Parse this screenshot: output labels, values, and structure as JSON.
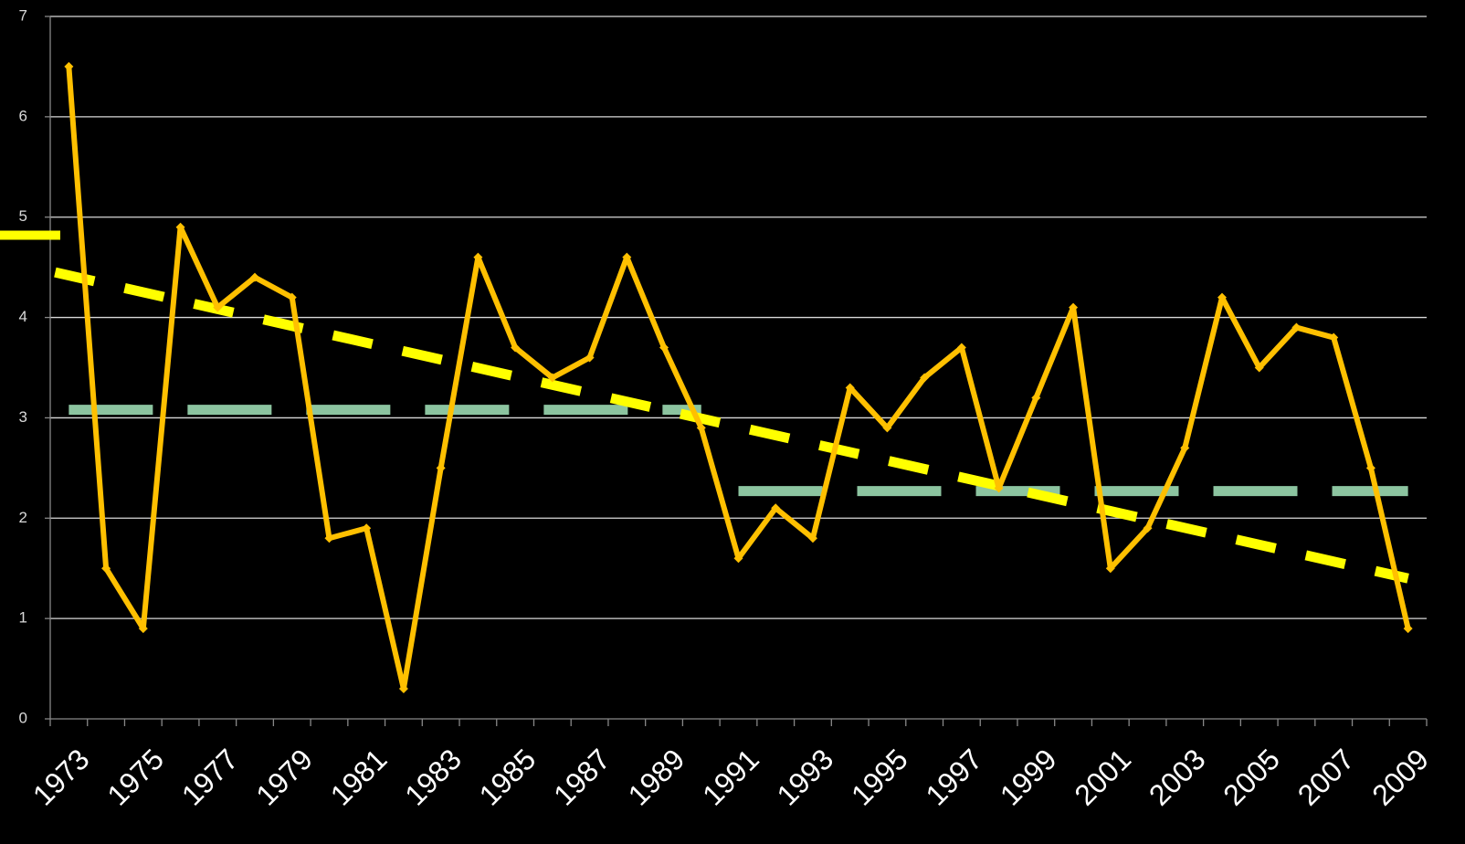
{
  "chart_data": {
    "type": "line",
    "categories": [
      "1973",
      null,
      "1975",
      null,
      "1977",
      null,
      "1979",
      null,
      "1981",
      null,
      "1983",
      null,
      "1985",
      null,
      "1987",
      null,
      "1989",
      null,
      "1991",
      null,
      "1993",
      null,
      "1995",
      null,
      "1997",
      null,
      "1999",
      null,
      "2001",
      null,
      "2003",
      null,
      "2005",
      null,
      "2007",
      null,
      "2009"
    ],
    "series": [
      {
        "color": "#ffc000",
        "values": [
          6.5,
          1.5,
          0.9,
          4.9,
          4.1,
          4.4,
          4.2,
          1.8,
          1.9,
          0.3,
          2.5,
          4.6,
          3.7,
          3.4,
          3.6,
          4.6,
          3.7,
          2.9,
          1.6,
          2.1,
          1.8,
          3.3,
          2.9,
          3.4,
          3.7,
          2.3,
          3.2,
          4.1,
          1.5,
          1.9,
          2.7,
          4.2,
          3.5,
          3.9,
          3.8,
          2.5,
          0.9
        ]
      },
      {
        "color": "#8cc4a0",
        "values": [
          3.08,
          3.08,
          3.08,
          3.08,
          3.08,
          3.08,
          3.08,
          3.08,
          3.08,
          3.08,
          3.08,
          3.08,
          3.08,
          3.08,
          3.08,
          3.08,
          3.08,
          3.08,
          null,
          null,
          null,
          null,
          null,
          null,
          null,
          null,
          null,
          null,
          null,
          null,
          null,
          null,
          null,
          null,
          null,
          null,
          null
        ]
      },
      {
        "color": "#8cc4a0",
        "values": [
          null,
          null,
          null,
          null,
          null,
          null,
          null,
          null,
          null,
          null,
          null,
          null,
          null,
          null,
          null,
          null,
          null,
          null,
          2.27,
          2.27,
          2.27,
          2.27,
          2.27,
          2.27,
          2.27,
          2.27,
          2.27,
          2.27,
          2.27,
          2.27,
          2.27,
          2.27,
          2.27,
          2.27,
          2.27,
          2.27,
          2.27
        ]
      }
    ],
    "trend": {
      "color": "#ffff00",
      "start": 4.45,
      "end": 1.4
    },
    "marker": {
      "color": "#ffff00",
      "value": 4.82
    },
    "ylim": [
      0,
      7
    ],
    "yticks": [
      0,
      1,
      2,
      3,
      4,
      5,
      6,
      7
    ],
    "grid": true
  }
}
